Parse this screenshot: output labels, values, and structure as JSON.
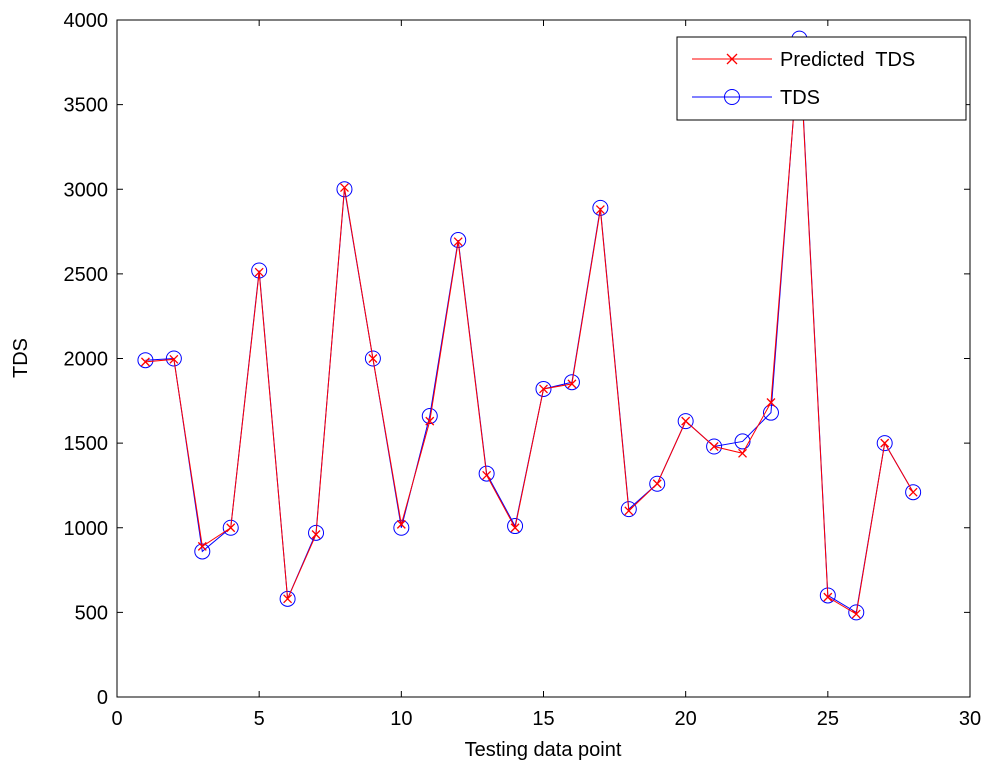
{
  "chart_data": {
    "type": "line",
    "title": "",
    "xlabel": "Testing data point",
    "ylabel": "TDS",
    "xlim": [
      0,
      30
    ],
    "ylim": [
      0,
      4000
    ],
    "xticks": [
      0,
      5,
      10,
      15,
      20,
      25,
      30
    ],
    "yticks": [
      0,
      500,
      1000,
      1500,
      2000,
      2500,
      3000,
      3500,
      4000
    ],
    "grid": false,
    "legend_position": "top-right",
    "x": [
      1,
      2,
      3,
      4,
      5,
      6,
      7,
      8,
      9,
      10,
      11,
      12,
      13,
      14,
      15,
      16,
      17,
      18,
      19,
      20,
      21,
      22,
      23,
      24,
      25,
      26,
      27,
      28
    ],
    "series": [
      {
        "name": "Predicted  TDS",
        "color": "#ff0000",
        "marker": "x",
        "values": [
          1980,
          1995,
          890,
          1000,
          2510,
          580,
          960,
          3010,
          2000,
          1020,
          1630,
          2690,
          1310,
          1000,
          1820,
          1850,
          2880,
          1100,
          1260,
          1630,
          1480,
          1440,
          1740,
          3870,
          590,
          490,
          1500,
          1210
        ]
      },
      {
        "name": "TDS",
        "color": "#0000ff",
        "marker": "circle",
        "values": [
          1990,
          2000,
          860,
          1000,
          2520,
          580,
          970,
          3000,
          2000,
          1000,
          1660,
          2700,
          1320,
          1010,
          1820,
          1860,
          2890,
          1110,
          1260,
          1630,
          1480,
          1510,
          1680,
          3890,
          600,
          500,
          1500,
          1210
        ]
      }
    ]
  }
}
